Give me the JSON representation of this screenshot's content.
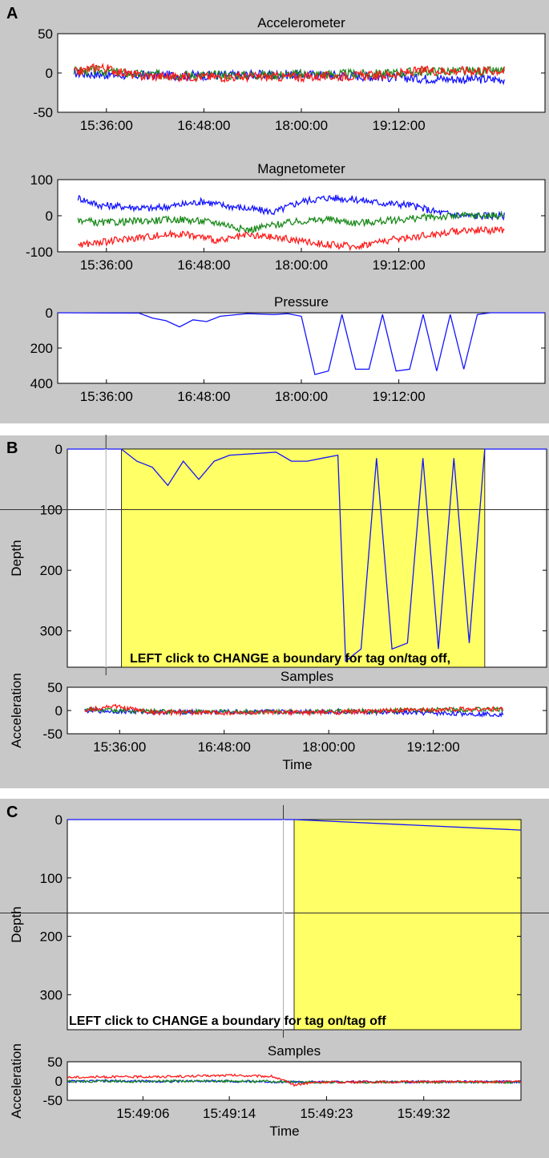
{
  "panels": {
    "a": {
      "label": "A"
    },
    "b": {
      "label": "B"
    },
    "c": {
      "label": "C"
    }
  },
  "colors": {
    "blue": "#1414ff",
    "green": "#1a8a1a",
    "red": "#ff1a1a",
    "highlight": "#ffff66",
    "panel_bg": "#c8c8c8"
  },
  "chart_data": [
    {
      "id": "accelerometer",
      "type": "line",
      "title": "Accelerometer",
      "xlabel": "",
      "ylabel": "",
      "ylim": [
        -50,
        50
      ],
      "yticks": [
        50,
        0,
        -50
      ],
      "xticks": [
        "15:36:00",
        "16:48:00",
        "18:00:00",
        "19:12:00"
      ],
      "series": [
        {
          "color": "blue",
          "points": [
            [
              "15:12:00",
              0
            ],
            [
              "15:30:00",
              -2
            ],
            [
              "16:00:00",
              -3
            ],
            [
              "17:00:00",
              -3
            ],
            [
              "17:40:00",
              -2
            ],
            [
              "18:00:00",
              -2
            ],
            [
              "18:30:00",
              -3
            ],
            [
              "19:00:00",
              -5
            ],
            [
              "19:30:00",
              -7
            ],
            [
              "20:00:00",
              -8
            ],
            [
              "20:30:00",
              -8
            ]
          ]
        },
        {
          "color": "green",
          "points": [
            [
              "15:12:00",
              2
            ],
            [
              "15:30:00",
              3
            ],
            [
              "16:00:00",
              -2
            ],
            [
              "17:00:00",
              -3
            ],
            [
              "18:00:00",
              -2
            ],
            [
              "19:00:00",
              -1
            ],
            [
              "19:30:00",
              2
            ],
            [
              "20:30:00",
              2
            ]
          ]
        },
        {
          "color": "red",
          "points": [
            [
              "15:12:00",
              0
            ],
            [
              "15:30:00",
              8
            ],
            [
              "16:00:00",
              -4
            ],
            [
              "17:00:00",
              -5
            ],
            [
              "18:00:00",
              -5
            ],
            [
              "19:00:00",
              -3
            ],
            [
              "19:30:00",
              3
            ],
            [
              "20:30:00",
              3
            ]
          ]
        }
      ]
    },
    {
      "id": "magnetometer",
      "type": "line",
      "title": "Magnetometer",
      "xlabel": "",
      "ylabel": "",
      "ylim": [
        -100,
        100
      ],
      "yticks": [
        100,
        0,
        -100
      ],
      "xticks": [
        "15:36:00",
        "16:48:00",
        "18:00:00",
        "19:12:00"
      ],
      "series": [
        {
          "color": "blue",
          "points": [
            [
              "15:15:00",
              50
            ],
            [
              "15:30:00",
              30
            ],
            [
              "15:50:00",
              25
            ],
            [
              "16:10:00",
              20
            ],
            [
              "16:30:00",
              30
            ],
            [
              "16:48:00",
              40
            ],
            [
              "17:00:00",
              30
            ],
            [
              "17:20:00",
              20
            ],
            [
              "17:40:00",
              10
            ],
            [
              "18:00:00",
              40
            ],
            [
              "18:20:00",
              50
            ],
            [
              "18:40:00",
              45
            ],
            [
              "19:00:00",
              35
            ],
            [
              "19:20:00",
              30
            ],
            [
              "19:40:00",
              10
            ],
            [
              "20:00:00",
              0
            ],
            [
              "20:30:00",
              0
            ]
          ]
        },
        {
          "color": "green",
          "points": [
            [
              "15:15:00",
              -10
            ],
            [
              "15:30:00",
              -20
            ],
            [
              "16:00:00",
              -15
            ],
            [
              "16:30:00",
              -10
            ],
            [
              "17:00:00",
              -20
            ],
            [
              "17:20:00",
              -40
            ],
            [
              "17:40:00",
              -25
            ],
            [
              "18:00:00",
              -15
            ],
            [
              "18:20:00",
              -10
            ],
            [
              "18:40:00",
              -20
            ],
            [
              "19:00:00",
              -15
            ],
            [
              "19:30:00",
              -5
            ],
            [
              "20:00:00",
              0
            ],
            [
              "20:30:00",
              0
            ]
          ]
        },
        {
          "color": "red",
          "points": [
            [
              "15:15:00",
              -80
            ],
            [
              "15:30:00",
              -75
            ],
            [
              "16:00:00",
              -60
            ],
            [
              "16:30:00",
              -50
            ],
            [
              "16:48:00",
              -60
            ],
            [
              "17:00:00",
              -70
            ],
            [
              "17:20:00",
              -55
            ],
            [
              "17:40:00",
              -60
            ],
            [
              "18:00:00",
              -70
            ],
            [
              "18:20:00",
              -80
            ],
            [
              "18:40:00",
              -85
            ],
            [
              "19:00:00",
              -70
            ],
            [
              "19:30:00",
              -55
            ],
            [
              "20:00:00",
              -40
            ],
            [
              "20:30:00",
              -40
            ]
          ]
        }
      ]
    },
    {
      "id": "pressure",
      "type": "line",
      "title": "Pressure",
      "xlabel": "",
      "ylabel": "",
      "ylim": [
        0,
        400
      ],
      "inverted_y": true,
      "yticks": [
        0,
        200,
        400
      ],
      "xticks": [
        "15:36:00",
        "16:48:00",
        "18:00:00",
        "19:12:00"
      ],
      "series": [
        {
          "color": "blue",
          "points": [
            [
              "15:00:00",
              0
            ],
            [
              "16:00:00",
              2
            ],
            [
              "16:10:00",
              30
            ],
            [
              "16:20:00",
              45
            ],
            [
              "16:30:00",
              80
            ],
            [
              "16:40:00",
              40
            ],
            [
              "16:50:00",
              50
            ],
            [
              "17:00:00",
              20
            ],
            [
              "17:20:00",
              5
            ],
            [
              "17:40:00",
              10
            ],
            [
              "17:50:00",
              5
            ],
            [
              "18:00:00",
              20
            ],
            [
              "18:10:00",
              350
            ],
            [
              "18:20:00",
              330
            ],
            [
              "18:30:00",
              10
            ],
            [
              "18:40:00",
              320
            ],
            [
              "18:50:00",
              320
            ],
            [
              "19:00:00",
              10
            ],
            [
              "19:10:00",
              330
            ],
            [
              "19:20:00",
              320
            ],
            [
              "19:30:00",
              10
            ],
            [
              "19:40:00",
              330
            ],
            [
              "19:50:00",
              10
            ],
            [
              "20:00:00",
              320
            ],
            [
              "20:10:00",
              10
            ],
            [
              "20:20:00",
              0
            ],
            [
              "21:00:00",
              0
            ]
          ]
        }
      ]
    },
    {
      "id": "depth_b",
      "type": "line",
      "title": "",
      "xlabel": "",
      "ylabel": "Depth",
      "ylim": [
        0,
        360
      ],
      "inverted_y": true,
      "yticks": [
        0,
        100,
        200,
        300
      ],
      "annotation": "LEFT click to CHANGE a boundary for tag on/tag off,",
      "highlight_range": [
        "15:55:00",
        "19:50:00"
      ],
      "cursor": {
        "x": "15:45:00",
        "y": 100
      },
      "series": [
        {
          "color": "blue",
          "points": [
            [
              "15:20:00",
              0
            ],
            [
              "15:55:00",
              0
            ],
            [
              "16:05:00",
              20
            ],
            [
              "16:15:00",
              30
            ],
            [
              "16:25:00",
              60
            ],
            [
              "16:35:00",
              20
            ],
            [
              "16:45:00",
              50
            ],
            [
              "16:55:00",
              20
            ],
            [
              "17:05:00",
              10
            ],
            [
              "17:35:00",
              5
            ],
            [
              "17:45:00",
              20
            ],
            [
              "17:55:00",
              20
            ],
            [
              "18:05:00",
              15
            ],
            [
              "18:15:00",
              10
            ],
            [
              "18:20:00",
              350
            ],
            [
              "18:30:00",
              330
            ],
            [
              "18:40:00",
              15
            ],
            [
              "18:50:00",
              330
            ],
            [
              "19:00:00",
              320
            ],
            [
              "19:10:00",
              15
            ],
            [
              "19:20:00",
              330
            ],
            [
              "19:30:00",
              15
            ],
            [
              "19:40:00",
              320
            ],
            [
              "19:50:00",
              0
            ],
            [
              "20:30:00",
              0
            ]
          ]
        }
      ]
    },
    {
      "id": "accel_b",
      "type": "line",
      "title": "Samples",
      "xlabel": "Time",
      "ylabel": "Acceleration",
      "ylim": [
        -50,
        50
      ],
      "yticks": [
        50,
        0,
        -50
      ],
      "xticks": [
        "15:36:00",
        "16:48:00",
        "18:00:00",
        "19:12:00"
      ],
      "series": [
        {
          "color": "blue",
          "points": [
            [
              "15:12:00",
              0
            ],
            [
              "16:00:00",
              -3
            ],
            [
              "17:00:00",
              -3
            ],
            [
              "18:00:00",
              -2
            ],
            [
              "19:00:00",
              -5
            ],
            [
              "20:00:00",
              -8
            ]
          ]
        },
        {
          "color": "green",
          "points": [
            [
              "15:12:00",
              2
            ],
            [
              "16:00:00",
              -2
            ],
            [
              "17:00:00",
              -3
            ],
            [
              "18:00:00",
              -2
            ],
            [
              "19:30:00",
              2
            ],
            [
              "20:00:00",
              2
            ]
          ]
        },
        {
          "color": "red",
          "points": [
            [
              "15:12:00",
              0
            ],
            [
              "15:30:00",
              10
            ],
            [
              "16:00:00",
              -4
            ],
            [
              "17:00:00",
              -5
            ],
            [
              "18:00:00",
              -4
            ],
            [
              "19:30:00",
              3
            ],
            [
              "20:00:00",
              3
            ]
          ]
        }
      ]
    },
    {
      "id": "depth_c",
      "type": "line",
      "title": "",
      "xlabel": "",
      "ylabel": "Depth",
      "ylim": [
        0,
        360
      ],
      "inverted_y": true,
      "yticks": [
        0,
        100,
        200,
        300
      ],
      "annotation": "LEFT click to CHANGE a boundary for tag on/tag off",
      "highlight_range": [
        "15:49:20",
        "15:49:41"
      ],
      "cursor": {
        "x": "15:49:19",
        "y": 160
      },
      "series": [
        {
          "color": "blue",
          "points": [
            [
              "15:48:59",
              0
            ],
            [
              "15:49:20",
              0
            ],
            [
              "15:49:41",
              18
            ]
          ]
        }
      ]
    },
    {
      "id": "accel_c",
      "type": "line",
      "title": "Samples",
      "xlabel": "Time",
      "ylabel": "Acceleration",
      "ylim": [
        -50,
        50
      ],
      "yticks": [
        50,
        0,
        -50
      ],
      "xticks": [
        "15:49:06",
        "15:49:14",
        "15:49:23",
        "15:49:32"
      ],
      "series": [
        {
          "color": "blue",
          "points": [
            [
              "15:48:59",
              -1
            ],
            [
              "15:49:03",
              0
            ],
            [
              "15:49:08",
              -1
            ],
            [
              "15:49:12",
              0
            ],
            [
              "15:49:18",
              -2
            ],
            [
              "15:49:22",
              -3
            ],
            [
              "15:49:30",
              -2
            ],
            [
              "15:49:41",
              -2
            ]
          ]
        },
        {
          "color": "green",
          "points": [
            [
              "15:48:59",
              -1
            ],
            [
              "15:49:05",
              -1
            ],
            [
              "15:49:12",
              0
            ],
            [
              "15:49:18",
              -1
            ],
            [
              "15:49:22",
              -3
            ],
            [
              "15:49:30",
              -3
            ],
            [
              "15:49:41",
              -3
            ]
          ]
        },
        {
          "color": "red",
          "points": [
            [
              "15:48:59",
              10
            ],
            [
              "15:49:05",
              11
            ],
            [
              "15:49:10",
              12
            ],
            [
              "15:49:14",
              15
            ],
            [
              "15:49:18",
              12
            ],
            [
              "15:49:20",
              -10
            ],
            [
              "15:49:22",
              -3
            ],
            [
              "15:49:30",
              -2
            ],
            [
              "15:49:41",
              -2
            ]
          ]
        }
      ]
    }
  ]
}
